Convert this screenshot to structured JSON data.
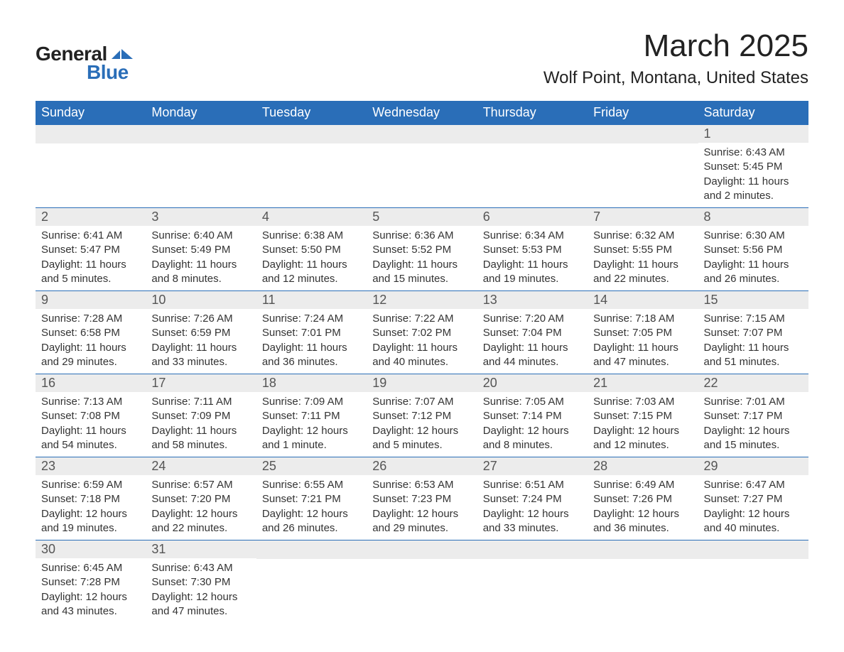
{
  "logo": {
    "word1": "General",
    "word2": "Blue",
    "shape_color": "#2a6eb8"
  },
  "title": "March 2025",
  "location": "Wolf Point, Montana, United States",
  "header_bg": "#2a6eb8",
  "header_fg": "#ffffff",
  "daynum_bg": "#ececec",
  "border_color": "#2a6eb8",
  "columns": [
    "Sunday",
    "Monday",
    "Tuesday",
    "Wednesday",
    "Thursday",
    "Friday",
    "Saturday"
  ],
  "weeks": [
    [
      null,
      null,
      null,
      null,
      null,
      null,
      {
        "n": "1",
        "sunrise": "6:43 AM",
        "sunset": "5:45 PM",
        "daylight": "11 hours and 2 minutes."
      }
    ],
    [
      {
        "n": "2",
        "sunrise": "6:41 AM",
        "sunset": "5:47 PM",
        "daylight": "11 hours and 5 minutes."
      },
      {
        "n": "3",
        "sunrise": "6:40 AM",
        "sunset": "5:49 PM",
        "daylight": "11 hours and 8 minutes."
      },
      {
        "n": "4",
        "sunrise": "6:38 AM",
        "sunset": "5:50 PM",
        "daylight": "11 hours and 12 minutes."
      },
      {
        "n": "5",
        "sunrise": "6:36 AM",
        "sunset": "5:52 PM",
        "daylight": "11 hours and 15 minutes."
      },
      {
        "n": "6",
        "sunrise": "6:34 AM",
        "sunset": "5:53 PM",
        "daylight": "11 hours and 19 minutes."
      },
      {
        "n": "7",
        "sunrise": "6:32 AM",
        "sunset": "5:55 PM",
        "daylight": "11 hours and 22 minutes."
      },
      {
        "n": "8",
        "sunrise": "6:30 AM",
        "sunset": "5:56 PM",
        "daylight": "11 hours and 26 minutes."
      }
    ],
    [
      {
        "n": "9",
        "sunrise": "7:28 AM",
        "sunset": "6:58 PM",
        "daylight": "11 hours and 29 minutes."
      },
      {
        "n": "10",
        "sunrise": "7:26 AM",
        "sunset": "6:59 PM",
        "daylight": "11 hours and 33 minutes."
      },
      {
        "n": "11",
        "sunrise": "7:24 AM",
        "sunset": "7:01 PM",
        "daylight": "11 hours and 36 minutes."
      },
      {
        "n": "12",
        "sunrise": "7:22 AM",
        "sunset": "7:02 PM",
        "daylight": "11 hours and 40 minutes."
      },
      {
        "n": "13",
        "sunrise": "7:20 AM",
        "sunset": "7:04 PM",
        "daylight": "11 hours and 44 minutes."
      },
      {
        "n": "14",
        "sunrise": "7:18 AM",
        "sunset": "7:05 PM",
        "daylight": "11 hours and 47 minutes."
      },
      {
        "n": "15",
        "sunrise": "7:15 AM",
        "sunset": "7:07 PM",
        "daylight": "11 hours and 51 minutes."
      }
    ],
    [
      {
        "n": "16",
        "sunrise": "7:13 AM",
        "sunset": "7:08 PM",
        "daylight": "11 hours and 54 minutes."
      },
      {
        "n": "17",
        "sunrise": "7:11 AM",
        "sunset": "7:09 PM",
        "daylight": "11 hours and 58 minutes."
      },
      {
        "n": "18",
        "sunrise": "7:09 AM",
        "sunset": "7:11 PM",
        "daylight": "12 hours and 1 minute."
      },
      {
        "n": "19",
        "sunrise": "7:07 AM",
        "sunset": "7:12 PM",
        "daylight": "12 hours and 5 minutes."
      },
      {
        "n": "20",
        "sunrise": "7:05 AM",
        "sunset": "7:14 PM",
        "daylight": "12 hours and 8 minutes."
      },
      {
        "n": "21",
        "sunrise": "7:03 AM",
        "sunset": "7:15 PM",
        "daylight": "12 hours and 12 minutes."
      },
      {
        "n": "22",
        "sunrise": "7:01 AM",
        "sunset": "7:17 PM",
        "daylight": "12 hours and 15 minutes."
      }
    ],
    [
      {
        "n": "23",
        "sunrise": "6:59 AM",
        "sunset": "7:18 PM",
        "daylight": "12 hours and 19 minutes."
      },
      {
        "n": "24",
        "sunrise": "6:57 AM",
        "sunset": "7:20 PM",
        "daylight": "12 hours and 22 minutes."
      },
      {
        "n": "25",
        "sunrise": "6:55 AM",
        "sunset": "7:21 PM",
        "daylight": "12 hours and 26 minutes."
      },
      {
        "n": "26",
        "sunrise": "6:53 AM",
        "sunset": "7:23 PM",
        "daylight": "12 hours and 29 minutes."
      },
      {
        "n": "27",
        "sunrise": "6:51 AM",
        "sunset": "7:24 PM",
        "daylight": "12 hours and 33 minutes."
      },
      {
        "n": "28",
        "sunrise": "6:49 AM",
        "sunset": "7:26 PM",
        "daylight": "12 hours and 36 minutes."
      },
      {
        "n": "29",
        "sunrise": "6:47 AM",
        "sunset": "7:27 PM",
        "daylight": "12 hours and 40 minutes."
      }
    ],
    [
      {
        "n": "30",
        "sunrise": "6:45 AM",
        "sunset": "7:28 PM",
        "daylight": "12 hours and 43 minutes."
      },
      {
        "n": "31",
        "sunrise": "6:43 AM",
        "sunset": "7:30 PM",
        "daylight": "12 hours and 47 minutes."
      },
      null,
      null,
      null,
      null,
      null
    ]
  ],
  "labels": {
    "sunrise_prefix": "Sunrise: ",
    "sunset_prefix": "Sunset: ",
    "daylight_prefix": "Daylight: "
  }
}
